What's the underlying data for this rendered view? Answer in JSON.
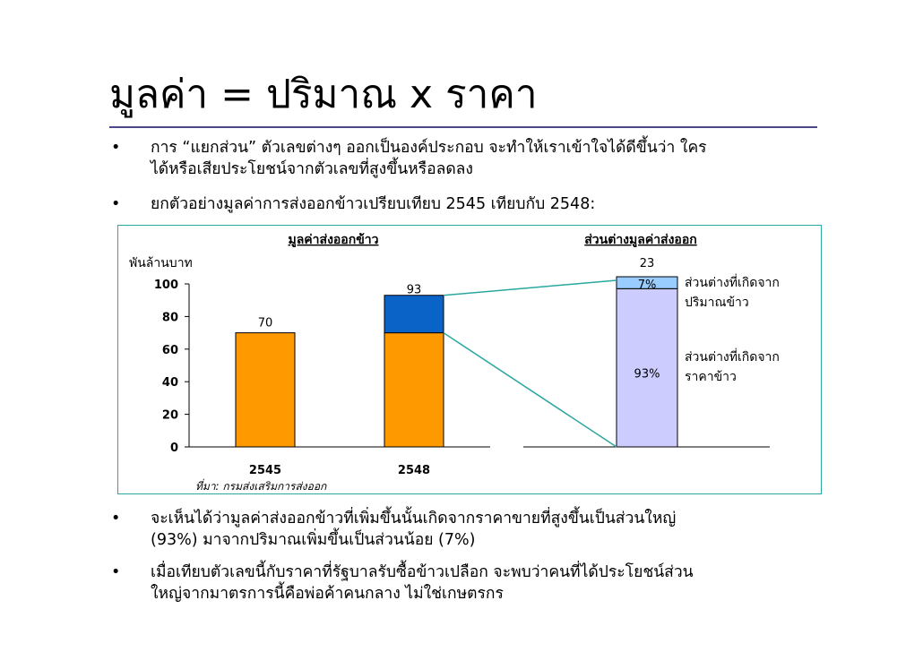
{
  "title": "มูลค่า = ปริมาณ x ราคา",
  "bullets_top": [
    {
      "marker": "•",
      "lines": [
        "การ “แยกส่วน” ตัวเลขต่างๆ ออกเป็นองค์ประกอบ จะทำให้เราเข้าใจได้ดีขึ้นว่า ใคร",
        "ได้หรือเสียประโยชน์จากตัวเลขที่สูงขึ้นหรือลดลง"
      ]
    },
    {
      "marker": "•",
      "lines": [
        "ยกตัวอย่างมูลค่าการส่งออกข้าวเปรียบเทียบ 2545 เทียบกับ 2548:"
      ]
    }
  ],
  "bullets_bottom": [
    {
      "marker": "•",
      "lines": [
        "จะเห็นได้ว่ามูลค่าส่งออกข้าวที่เพิ่มขึ้นนั้นเกิดจากราคาขายที่สูงขึ้นเป็นส่วนใหญ่",
        "(93%) มาจากปริมาณเพิ่มขึ้นเป็นส่วนน้อย (7%)"
      ]
    },
    {
      "marker": "•",
      "lines": [
        "เมื่อเทียบตัวเลขนี้กับราคาที่รัฐบาลรับซื้อข้าวเปลือก จะพบว่าคนที่ได้ประโยชน์ส่วน",
        "ใหญ่จากมาตรการนี้คือพ่อค้าคนกลาง ไม่ใช่เกษตรกร"
      ]
    }
  ],
  "chart_data": [
    {
      "type": "bar",
      "title": "มูลค่าส่งออกข้าว",
      "ylabel": "พันล้านบาท",
      "ylim": [
        0,
        100
      ],
      "yticks": [
        0,
        20,
        40,
        60,
        80,
        100
      ],
      "categories": [
        "2545",
        "2548"
      ],
      "stacked": true,
      "series": [
        {
          "values": [
            70,
            70
          ],
          "color": "#ff9900"
        },
        {
          "values": [
            0,
            23
          ],
          "color": "#0a64c8"
        }
      ],
      "data_labels": [
        "70",
        "93"
      ],
      "source_note": "ที่มา: กรมส่งเสริมการส่งออก"
    },
    {
      "type": "bar",
      "title": "ส่วนต่างมูลค่าส่งออก",
      "stacked": true,
      "total": 23,
      "total_label": "23",
      "segments": [
        {
          "name": "ส่วนต่างที่เกิดจากราคาข้าว",
          "name_lines": [
            "ส่วนต่างที่เกิดจาก",
            "ราคาข้าว"
          ],
          "percent": 93,
          "label": "93%",
          "color": "#ccccff"
        },
        {
          "name": "ส่วนต่างที่เกิดจากปริมาณข้าว",
          "name_lines": [
            "ส่วนต่างที่เกิดจาก",
            "ปริมาณข้าว"
          ],
          "percent": 7,
          "label": "7%",
          "color": "#99ccff"
        }
      ]
    }
  ],
  "colors": {
    "connector": "#2aa7a0",
    "box_border": "#2aa7a0",
    "title_rule": "#4a4a8a"
  }
}
